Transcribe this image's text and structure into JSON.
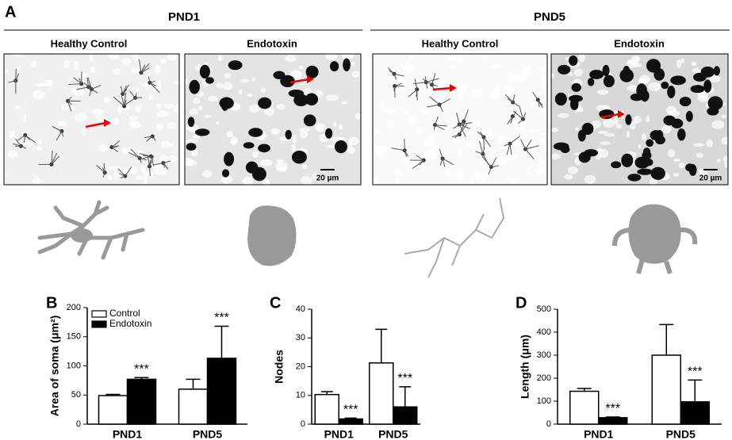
{
  "figure": {
    "panel_label": "A",
    "scale_bar": "20 µm",
    "groups": [
      {
        "title": "PND1",
        "conditions": [
          "Healthy Control",
          "Endotoxin"
        ]
      },
      {
        "title": "PND5",
        "conditions": [
          "Healthy Control",
          "Endotoxin"
        ]
      }
    ]
  },
  "chart_data": [
    {
      "type": "bar",
      "panel_label": "B",
      "y_label": "Area of soma (μm²)",
      "legend": "upper left",
      "categories": [
        "PND1",
        "PND5"
      ],
      "ylim": [
        0,
        200
      ],
      "yticks": [
        0,
        50,
        100,
        150,
        200
      ],
      "series": [
        {
          "name": "Control",
          "color": "#ffffff",
          "values": [
            49,
            60
          ],
          "errors": [
            2,
            17
          ]
        },
        {
          "name": "Endotoxin",
          "color": "#000000",
          "values": [
            77,
            113
          ],
          "errors": [
            3,
            55
          ],
          "value_labels": [
            "***",
            "***"
          ]
        }
      ]
    },
    {
      "type": "bar",
      "panel_label": "C",
      "y_label": "Nodes",
      "categories": [
        "PND1",
        "PND5"
      ],
      "ylim": [
        0,
        40
      ],
      "yticks": [
        0,
        10,
        20,
        30,
        40
      ],
      "series": [
        {
          "color": "#ffffff",
          "values": [
            10.3,
            21.3
          ],
          "errors": [
            1,
            11.7
          ]
        },
        {
          "color": "#000000",
          "values": [
            1.8,
            6
          ],
          "errors": [
            0.3,
            7
          ],
          "value_labels": [
            "***",
            "***"
          ]
        }
      ]
    },
    {
      "type": "bar",
      "panel_label": "D",
      "y_label": "Length (μm)",
      "categories": [
        "PND1",
        "PND5"
      ],
      "ylim": [
        0,
        500
      ],
      "yticks": [
        0,
        100,
        200,
        300,
        400,
        500
      ],
      "series": [
        {
          "color": "#ffffff",
          "values": [
            143,
            300
          ],
          "errors": [
            12,
            133
          ]
        },
        {
          "color": "#000000",
          "values": [
            28,
            97
          ],
          "errors": [
            3,
            95
          ],
          "value_labels": [
            "***",
            "***"
          ]
        }
      ]
    }
  ]
}
